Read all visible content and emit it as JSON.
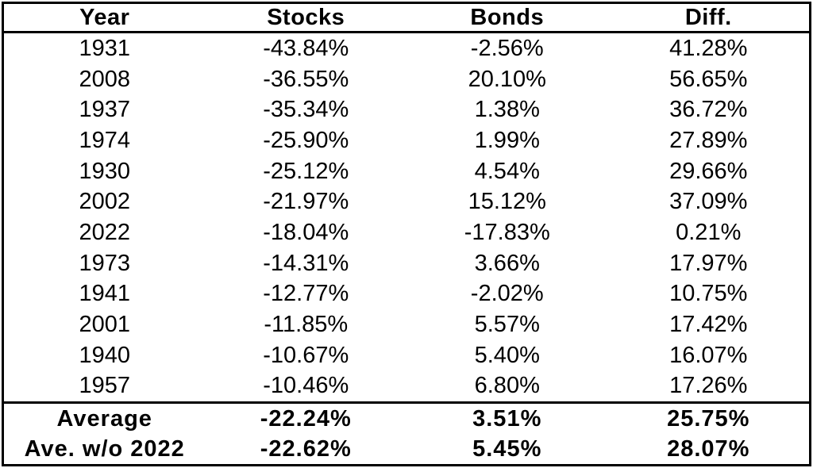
{
  "chart_data": {
    "type": "table",
    "columns": [
      "Year",
      "Stocks",
      "Bonds",
      "Diff."
    ],
    "rows": [
      [
        "1931",
        "-43.84%",
        "-2.56%",
        "41.28%"
      ],
      [
        "2008",
        "-36.55%",
        "20.10%",
        "56.65%"
      ],
      [
        "1937",
        "-35.34%",
        "1.38%",
        "36.72%"
      ],
      [
        "1974",
        "-25.90%",
        "1.99%",
        "27.89%"
      ],
      [
        "1930",
        "-25.12%",
        "4.54%",
        "29.66%"
      ],
      [
        "2002",
        "-21.97%",
        "15.12%",
        "37.09%"
      ],
      [
        "2022",
        "-18.04%",
        "-17.83%",
        "0.21%"
      ],
      [
        "1973",
        "-14.31%",
        "3.66%",
        "17.97%"
      ],
      [
        "1941",
        "-12.77%",
        "-2.02%",
        "10.75%"
      ],
      [
        "2001",
        "-11.85%",
        "5.57%",
        "17.42%"
      ],
      [
        "1940",
        "-10.67%",
        "5.40%",
        "16.07%"
      ],
      [
        "1957",
        "-10.46%",
        "6.80%",
        "17.26%"
      ]
    ],
    "footer_rows": [
      [
        "Average",
        "-22.24%",
        "3.51%",
        "25.75%"
      ],
      [
        "Ave. w/o 2022",
        "-22.62%",
        "5.45%",
        "28.07%"
      ]
    ],
    "legend": "none",
    "grid": "horizontal separators only (header and summary)",
    "colors": {
      "text": "#000000",
      "border": "#000000",
      "background": "#ffffff"
    }
  }
}
